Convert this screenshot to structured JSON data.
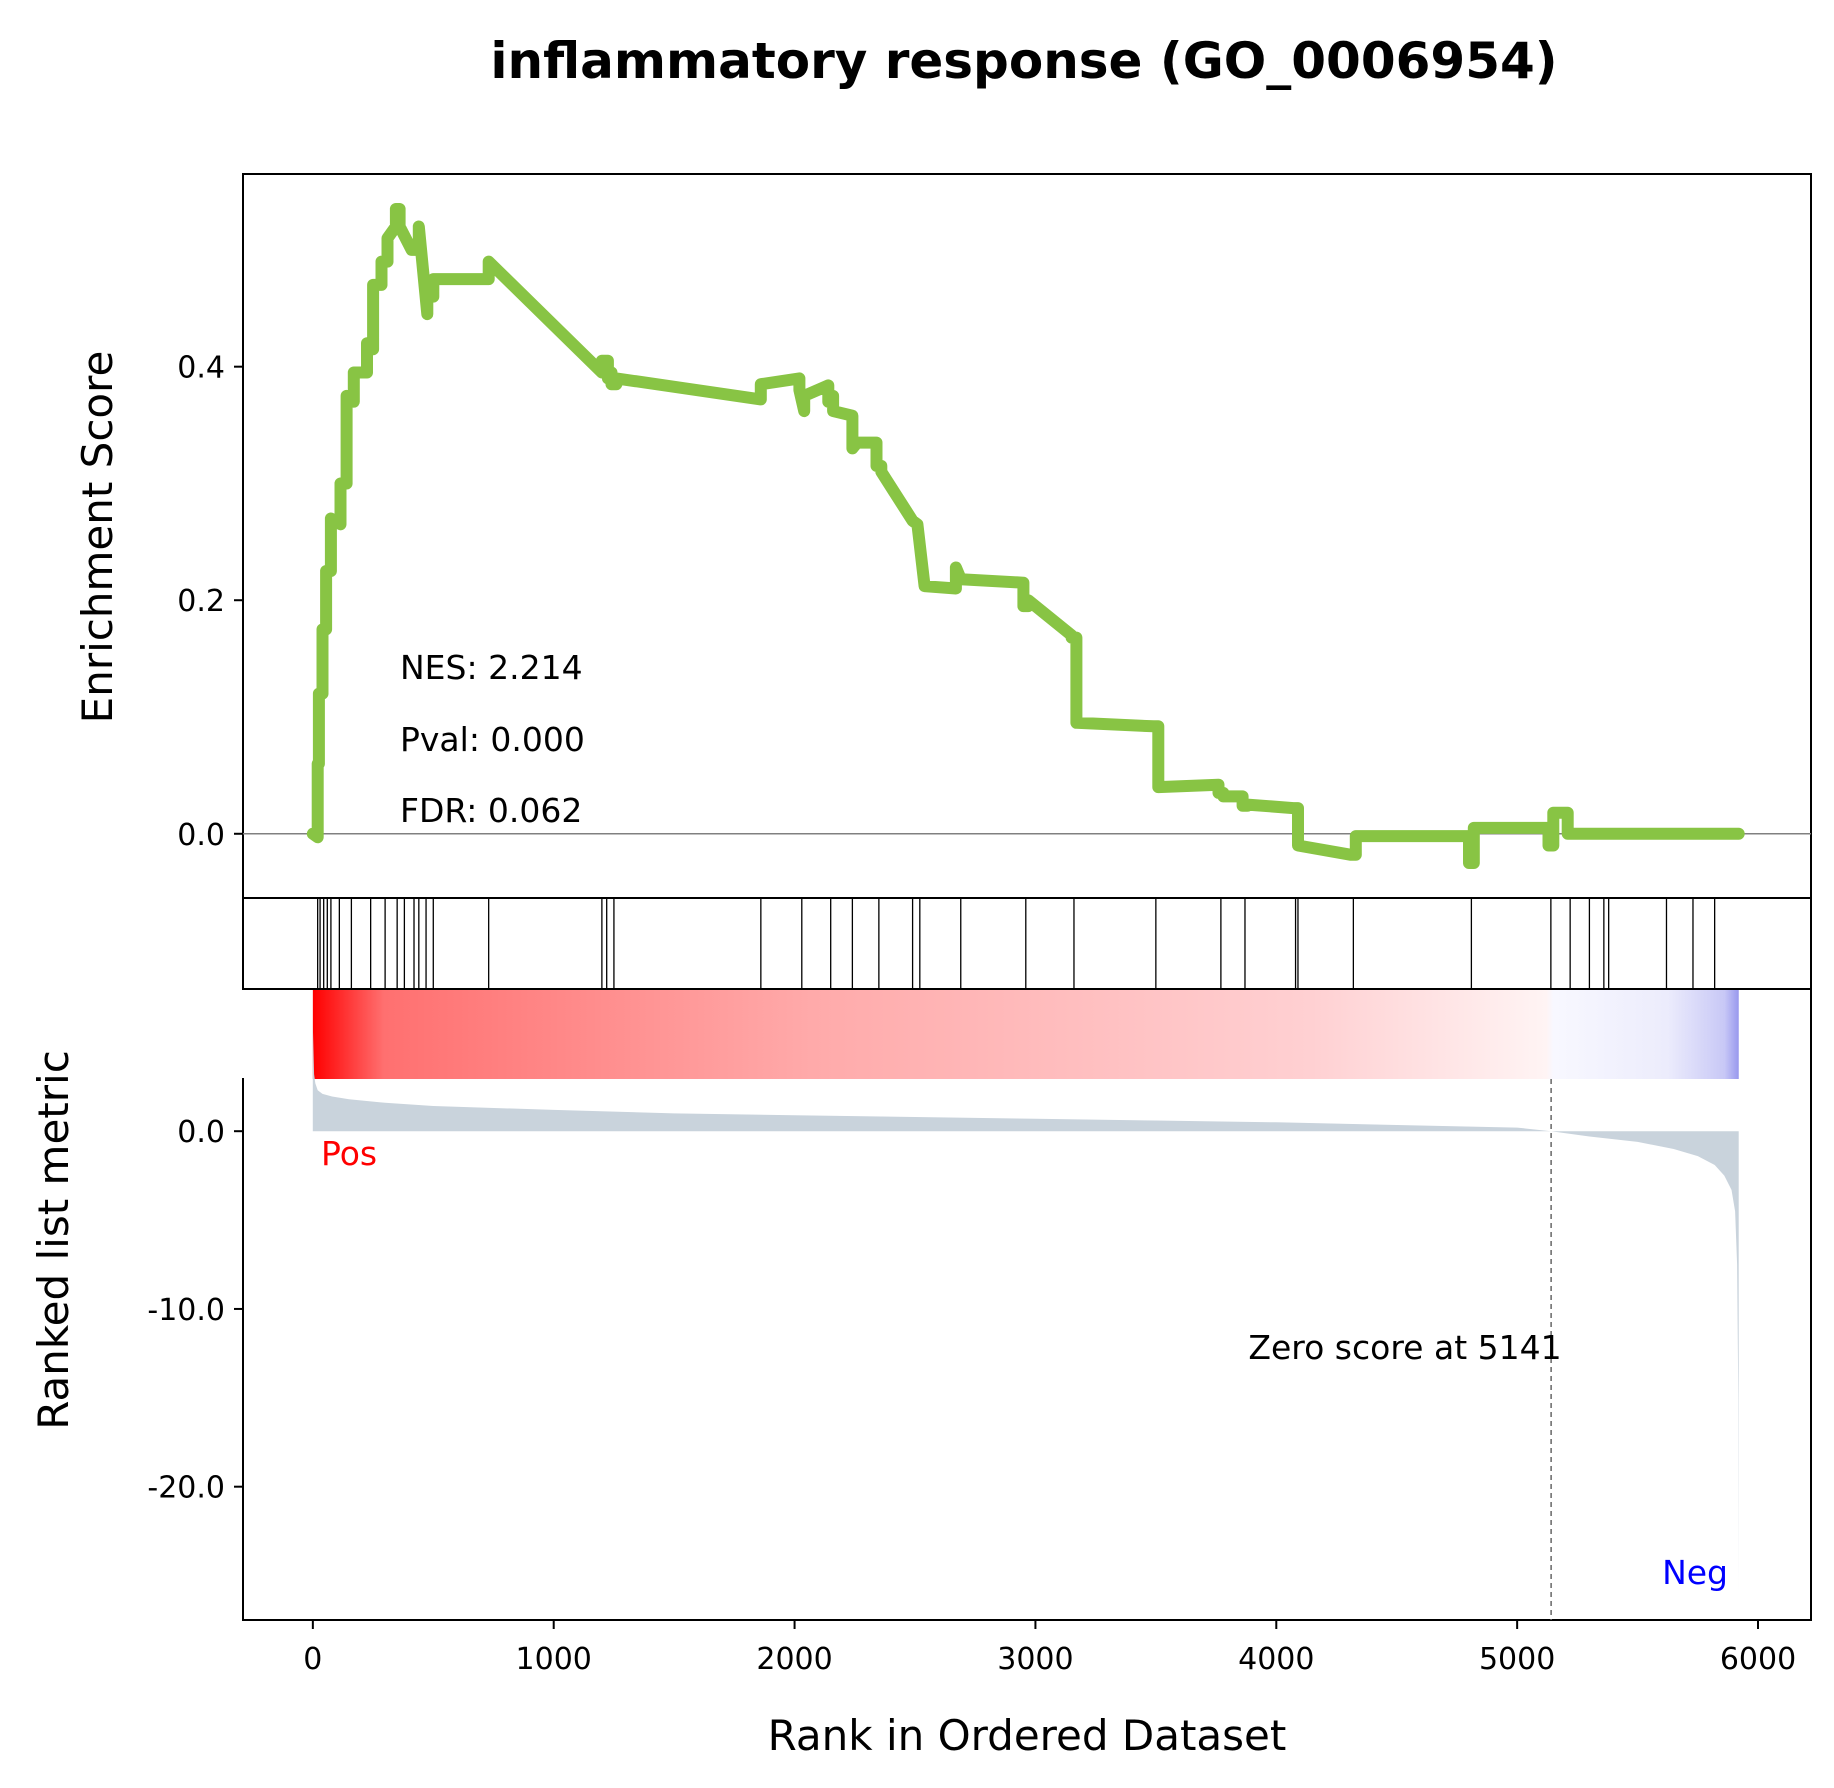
{
  "chart_data": {
    "type": "line",
    "title": "inflammatory response (GO_0006954)",
    "es_panel": {
      "ylabel": "Enrichment Score",
      "ylim": [
        -0.055,
        0.565
      ],
      "yticks": [
        0.0,
        0.2,
        0.4
      ],
      "ytick_labels": [
        "0.0",
        "0.2",
        "0.4"
      ],
      "line_color": "#88c444",
      "stats": {
        "nes": "NES: 2.214",
        "pval": "Pval: 0.000",
        "fdr": "FDR: 0.062"
      },
      "x": [
        0,
        20,
        20,
        25,
        25,
        40,
        40,
        55,
        55,
        75,
        75,
        115,
        115,
        140,
        140,
        170,
        170,
        225,
        225,
        250,
        250,
        285,
        285,
        310,
        310,
        345,
        345,
        360,
        360,
        410,
        410,
        440,
        440,
        475,
        475,
        500,
        500,
        730,
        730,
        1200,
        1200,
        1225,
        1225,
        1240,
        1240,
        1260,
        1260,
        1860,
        1860,
        2020,
        2020,
        2040,
        2040,
        2140,
        2140,
        2160,
        2160,
        2240,
        2240,
        2260,
        2260,
        2340,
        2340,
        2360,
        2360,
        2490,
        2490,
        2510,
        2510,
        2540,
        2540,
        2670,
        2670,
        2690,
        2690,
        2950,
        2950,
        2970,
        2970,
        3150,
        3150,
        3170,
        3170,
        3490,
        3490,
        3510,
        3510,
        3760,
        3760,
        3780,
        3780,
        3860,
        3860,
        3880,
        3880,
        4070,
        4070,
        4090,
        4090,
        4310,
        4310,
        4330,
        4330,
        4800,
        4800,
        4820,
        4820,
        5130,
        5130,
        5150,
        5150,
        5210,
        5210,
        5230,
        5230,
        5290,
        5290,
        5310,
        5310,
        5350,
        5350,
        5380,
        5380,
        5610,
        5610,
        5630,
        5630,
        5720,
        5720,
        5740,
        5740,
        5810,
        5810,
        5830,
        5830,
        5920
      ],
      "y": [
        0,
        -0.003,
        0.06,
        0.06,
        0.12,
        0.12,
        0.175,
        0.175,
        0.225,
        0.225,
        0.27,
        0.265,
        0.3,
        0.3,
        0.375,
        0.37,
        0.395,
        0.395,
        0.42,
        0.415,
        0.47,
        0.47,
        0.49,
        0.49,
        0.51,
        0.52,
        0.535,
        0.535,
        0.52,
        0.5,
        0.5,
        0.5,
        0.52,
        0.445,
        0.46,
        0.46,
        0.475,
        0.475,
        0.49,
        0.395,
        0.405,
        0.405,
        0.39,
        0.395,
        0.385,
        0.385,
        0.39,
        0.372,
        0.385,
        0.39,
        0.38,
        0.362,
        0.375,
        0.384,
        0.37,
        0.375,
        0.362,
        0.358,
        0.33,
        0.335,
        0.335,
        0.335,
        0.315,
        0.315,
        0.31,
        0.268,
        0.268,
        0.265,
        0.265,
        0.212,
        0.212,
        0.21,
        0.228,
        0.218,
        0.218,
        0.215,
        0.195,
        0.195,
        0.2,
        0.17,
        0.168,
        0.168,
        0.095,
        0.092,
        0.092,
        0.092,
        0.04,
        0.042,
        0.035,
        0.035,
        0.032,
        0.032,
        0.024,
        0.024,
        0.025,
        0.022,
        0.022,
        0.022,
        -0.01,
        -0.018,
        -0.018,
        -0.018,
        -0.002,
        -0.002,
        -0.025,
        -0.025,
        0.005,
        0.005,
        -0.01,
        -0.01,
        0.018,
        0.018,
        0.0,
        0.0,
        0.0,
        0.0,
        0.0,
        0.0,
        0.0,
        0.0,
        0.0,
        0.0,
        0.0,
        0.0,
        0.0,
        0.0,
        0.0,
        0.0,
        0.0,
        0.0,
        0.0,
        0.0,
        0.0,
        0.0,
        0.0,
        0.0
      ]
    },
    "hits": [
      20,
      30,
      45,
      60,
      75,
      110,
      160,
      240,
      300,
      350,
      380,
      420,
      440,
      470,
      500,
      730,
      1200,
      1220,
      1250,
      1860,
      2030,
      2150,
      2240,
      2350,
      2490,
      2520,
      2690,
      2960,
      3160,
      3500,
      3770,
      3870,
      4080,
      4090,
      4320,
      4810,
      5140,
      5220,
      5300,
      5360,
      5380,
      5620,
      5730,
      5820
    ],
    "ranking_panel": {
      "ylabel": "Ranked list metric",
      "ylim": [
        -27.5,
        8
      ],
      "yticks": [
        0.0,
        -10.0,
        -20.0
      ],
      "ytick_labels": [
        "0.0",
        "-10.0",
        "-20.0"
      ],
      "fill_color": "#c9d3dc",
      "zero_cross": 5141,
      "zero_annotation": "Zero score at 5141",
      "pos_label": "Pos",
      "neg_label": "Neg",
      "pos_color": "#ff0000",
      "neg_color": "#0000ff",
      "metric_x": [
        0,
        5,
        10,
        20,
        40,
        80,
        150,
        300,
        500,
        1000,
        1500,
        2000,
        2500,
        3000,
        3500,
        4000,
        4500,
        5000,
        5141,
        5300,
        5500,
        5650,
        5750,
        5820,
        5860,
        5890,
        5905,
        5913,
        5918,
        5920
      ],
      "metric_y": [
        6.0,
        3.2,
        2.7,
        2.3,
        2.1,
        1.95,
        1.8,
        1.6,
        1.42,
        1.2,
        1.0,
        0.9,
        0.8,
        0.7,
        0.6,
        0.5,
        0.35,
        0.2,
        0.0,
        -0.3,
        -0.6,
        -1.0,
        -1.4,
        -1.9,
        -2.5,
        -3.3,
        -4.5,
        -7.5,
        -15.0,
        -26.0
      ]
    },
    "xlabel": "Rank in Ordered Dataset",
    "xlim": [
      -290,
      6220
    ],
    "xticks": [
      0,
      1000,
      2000,
      3000,
      4000,
      5000,
      6000
    ],
    "xtick_labels": [
      "0",
      "1000",
      "2000",
      "3000",
      "4000",
      "5000",
      "6000"
    ],
    "xmax_rank": 5920,
    "grid": false
  }
}
